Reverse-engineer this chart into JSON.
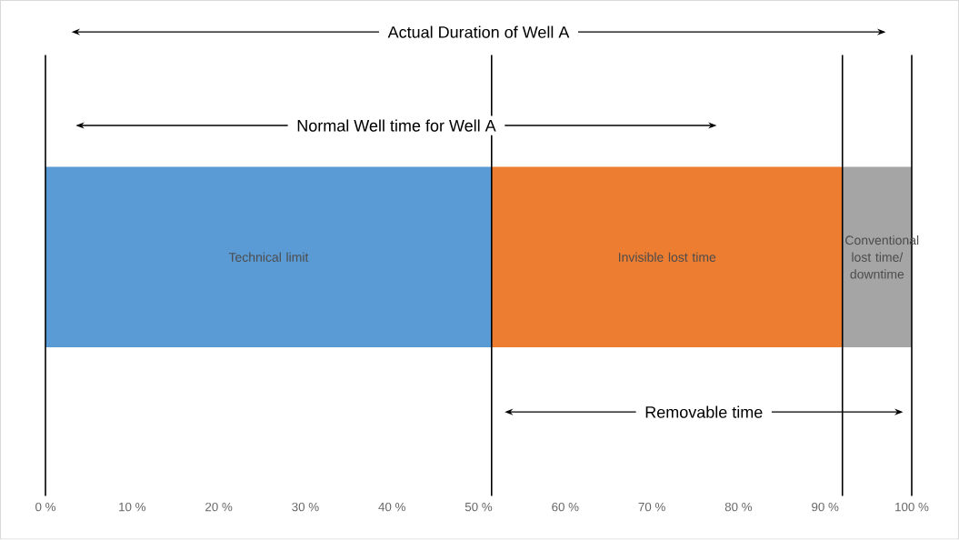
{
  "chart_data": {
    "type": "bar",
    "orientation": "horizontal",
    "stacked": true,
    "categories": [
      null
    ],
    "series": [
      {
        "name": "Technical limit",
        "color": "#5b9bd5",
        "values": [
          51.5
        ]
      },
      {
        "name": "Invisible lost time",
        "color": "#ed7d31",
        "values": [
          40.5
        ]
      },
      {
        "name": "Conventional lost time/ downtime",
        "color": "#a5a5a5",
        "values": [
          8
        ]
      }
    ],
    "xlim": [
      0,
      100
    ],
    "xticks": [
      {
        "value": 0,
        "label": "0 %"
      },
      {
        "value": 10,
        "label": "10 %"
      },
      {
        "value": 20,
        "label": "20 %"
      },
      {
        "value": 30,
        "label": "30 %"
      },
      {
        "value": 40,
        "label": "40 %"
      },
      {
        "value": 50,
        "label": "50 %"
      },
      {
        "value": 60,
        "label": "60 %"
      },
      {
        "value": 70,
        "label": "70 %"
      },
      {
        "value": 80,
        "label": "80 %"
      },
      {
        "value": 90,
        "label": "90 %"
      },
      {
        "value": 100,
        "label": "100 %"
      }
    ],
    "ref_lines": [
      {
        "axis": "x",
        "value": 0
      },
      {
        "axis": "x",
        "value": 51.5
      },
      {
        "axis": "x",
        "value": 92
      },
      {
        "axis": "x",
        "value": 100
      }
    ],
    "annotations": [
      "Actual Duration of Well A",
      "Normal Well time for Well A",
      "Removable time"
    ]
  }
}
